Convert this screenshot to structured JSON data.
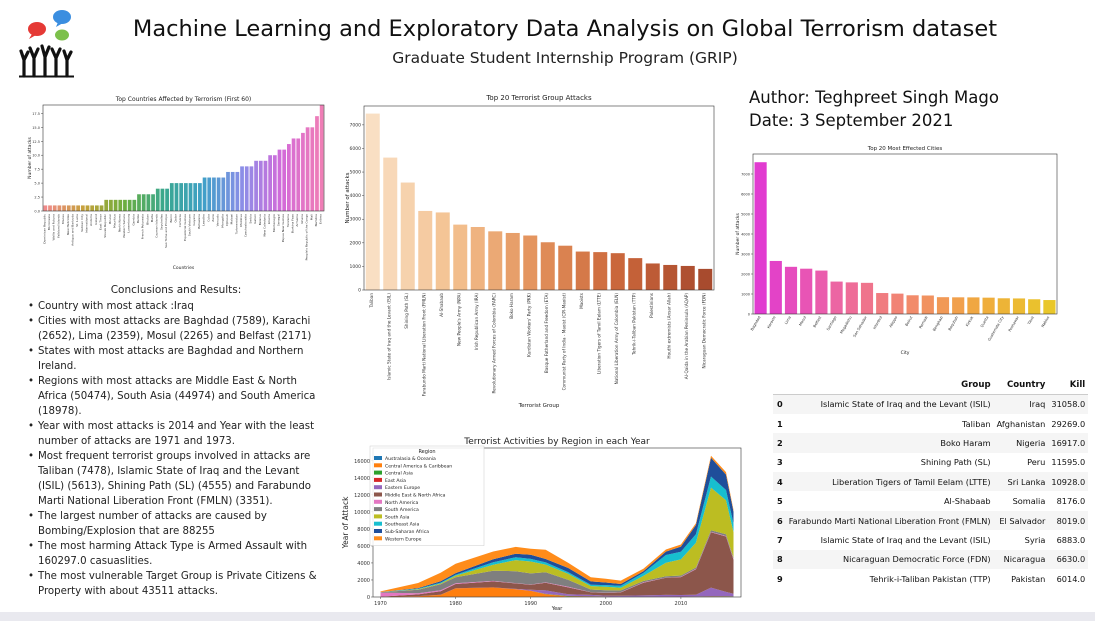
{
  "header": {
    "title": "Machine Learning and Exploratory Data Analysis on Global Terrorism dataset",
    "subtitle": "Graduate Student Internship Program (GRIP)",
    "author": "Author: Teghpreet Singh Mago",
    "date": "Date: 3 September 2021"
  },
  "conclusions": {
    "heading": "Conclusions and Results:",
    "items": [
      "Country with most attack :Iraq",
      "Cities with most attacks are Baghdad (7589), Karachi (2652), Lima (2359), Mosul (2265) and Belfast (2171)",
      "States with most attacks are Baghdad and Northern Ireland.",
      "Regions with most attacks are Middle East & North Africa (50474), South Asia (44974) and South America (18978).",
      "Year with most attacks is 2014 and Year with the least number of attacks are 1971 and 1973.",
      "Most frequent terrorist groups involved in attacks are Taliban (7478), Islamic State of Iraq and the Levant (ISIL) (5613), Shining Path (SL) (4555) and Farabundo Marti National Liberation Front (FMLN) (3351).",
      "The largest number of attacks are caused by Bombing/Explosion that are 88255",
      "The most harming Attack Type is Armed Assault with 160297.0 casuaslities.",
      "The most vulnerable Target Group is Private Citizens & Property with about 43511 attacks."
    ]
  },
  "table": {
    "columns": [
      "",
      "Group",
      "Country",
      "Kill"
    ],
    "rows": [
      [
        "0",
        "Islamic State of Iraq and the Levant (ISIL)",
        "Iraq",
        "31058.0"
      ],
      [
        "1",
        "Taliban",
        "Afghanistan",
        "29269.0"
      ],
      [
        "2",
        "Boko Haram",
        "Nigeria",
        "16917.0"
      ],
      [
        "3",
        "Shining Path (SL)",
        "Peru",
        "11595.0"
      ],
      [
        "4",
        "Liberation Tigers of Tamil Eelam (LTTE)",
        "Sri Lanka",
        "10928.0"
      ],
      [
        "5",
        "Al-Shabaab",
        "Somalia",
        "8176.0"
      ],
      [
        "6",
        "Farabundo Marti National Liberation Front (FMLN)",
        "El Salvador",
        "8019.0"
      ],
      [
        "7",
        "Islamic State of Iraq and the Levant (ISIL)",
        "Syria",
        "6883.0"
      ],
      [
        "8",
        "Nicaraguan Democratic Force (FDN)",
        "Nicaragua",
        "6630.0"
      ],
      [
        "9",
        "Tehrik-i-Taliban Pakistan (TTP)",
        "Pakistan",
        "6014.0"
      ]
    ]
  },
  "chart_data": [
    {
      "type": "bar",
      "title": "Top Countries Affected by Terrorism (First 60)",
      "xlabel": "Countries",
      "ylabel": "Number of attacks",
      "ylim": [
        0,
        19
      ],
      "yticks": [
        "0.0",
        "2.5",
        "5.0",
        "7.5",
        "10.0",
        "12.5",
        "15.0",
        "17.5"
      ],
      "categories": [
        "Dominican Republic",
        "Micronesia",
        "Wallis and Futuna",
        "Falkland Islands",
        "Macau",
        "New Hebrides",
        "Antigua and Barbuda",
        "St. Lucia",
        "Vatican City",
        "International",
        "Andorra",
        "Iceland",
        "East Timor",
        "Slovak Republic",
        "Brunei",
        "Mauritius",
        "North Korea",
        "Western Sahara",
        "Luxembourg",
        "Gambia",
        "Belize",
        "French Polynesia",
        "Bhutan",
        "Malta",
        "Cayman Islands",
        "Seychelles",
        "Sao Tome and Principe",
        "Benin",
        "Qatar",
        "Comoros",
        "Equatorial Guinea",
        "South Vietnam",
        "Guyana",
        "Botswana",
        "Lesotho",
        "Cuba",
        "Zaire",
        "Vanuatu",
        "Mongolia",
        "Djibouti",
        "Malawi",
        "Turkmenistan",
        "Moldova",
        "Czechoslovakia",
        "Serbia",
        "Gabon",
        "Belarus",
        "New Caledonia",
        "Liberia",
        "Montenegro",
        "Senegal",
        "Papua New Guinea",
        "Tanzania",
        "Burkina Faso",
        "Armenia",
        "Ghana",
        "People's Republic of the Congo",
        "Mali",
        "Namibia",
        "Eritrea"
      ],
      "values": [
        1,
        1,
        1,
        1,
        1,
        1,
        1,
        1,
        1,
        1,
        1,
        1,
        1,
        2,
        2,
        2,
        2,
        2,
        2,
        2,
        3,
        3,
        3,
        3,
        4,
        4,
        4,
        5,
        5,
        5,
        5,
        5,
        5,
        5,
        6,
        6,
        6,
        6,
        6,
        7,
        7,
        7,
        8,
        8,
        8,
        9,
        9,
        9,
        10,
        10,
        11,
        11,
        12,
        13,
        13,
        14,
        15,
        15,
        17,
        19
      ]
    },
    {
      "type": "bar",
      "title": "Top 20 Terrorist Group Attacks",
      "xlabel": "Terrorist Group",
      "ylabel": "Number of attacks",
      "ylim": [
        0,
        7800
      ],
      "yticks": [
        0,
        1000,
        2000,
        3000,
        4000,
        5000,
        6000,
        7000
      ],
      "categories": [
        "Taliban",
        "Islamic State of Iraq and the Levant (ISIL)",
        "Shining Path (SL)",
        "Farabundo Marti National Liberation Front (FMLN)",
        "Al-Shabaab",
        "New People's Army (NPA)",
        "Irish Republican Army (IRA)",
        "Revolutionary Armed Forces of Colombia (FARC)",
        "Boko Haram",
        "Kurdistan Workers' Party (PKK)",
        "Basque Fatherland and Freedom (ETA)",
        "Communist Party of India - Maoist (CPI-Maoist)",
        "Maoists",
        "Liberation Tigers of Tamil Eelam (LTTE)",
        "National Liberation Army of Colombia (ELN)",
        "Tehrik-i-Taliban Pakistan (TTP)",
        "Palestinians",
        "Houthi extremists (Ansar Allah)",
        "Al-Qaida in the Arabian Peninsula (AQAP)",
        "Nicaraguan Democratic Force (FDN)"
      ],
      "values": [
        7478,
        5613,
        4555,
        3351,
        3288,
        2772,
        2671,
        2487,
        2418,
        2310,
        2024,
        1878,
        1630,
        1606,
        1561,
        1351,
        1125,
        1062,
        1020,
        895
      ]
    },
    {
      "type": "bar",
      "title": "Top 20 Most Effected Cities",
      "xlabel": "City",
      "ylabel": "Number of attacks",
      "ylim": [
        0,
        8000
      ],
      "yticks": [
        0,
        1000,
        2000,
        3000,
        4000,
        5000,
        6000,
        7000
      ],
      "categories": [
        "Baghdad",
        "Karachi",
        "Lima",
        "Mosul",
        "Belfast",
        "Santiago",
        "Mogadishu",
        "San Salvador",
        "Istanbul",
        "Aleppo",
        "Beirut",
        "Ramadi",
        "Benghazi",
        "Baqubah",
        "Kirkuk",
        "Quetta",
        "Guatemala City",
        "Peshawar",
        "Tikrit",
        "Nablus"
      ],
      "values": [
        7589,
        2652,
        2359,
        2265,
        2171,
        1621,
        1581,
        1558,
        1048,
        1019,
        936,
        925,
        841,
        834,
        831,
        817,
        786,
        778,
        737,
        698
      ]
    },
    {
      "type": "area",
      "title": "Terrorist Activities by Region in each Year",
      "xlabel": "Year",
      "ylabel": "Year of Attack",
      "xlim": [
        1969,
        2018
      ],
      "ylim": [
        0,
        17500
      ],
      "xticks": [
        1970,
        1980,
        1990,
        2000,
        2010
      ],
      "yticks": [
        0,
        2000,
        4000,
        6000,
        8000,
        10000,
        12000,
        14000,
        16000
      ],
      "legend_title": "Region",
      "legend_position": "top-left",
      "x": [
        1970,
        1975,
        1978,
        1980,
        1985,
        1988,
        1990,
        1992,
        1995,
        1998,
        2000,
        2002,
        2005,
        2008,
        2010,
        2012,
        2014,
        2016,
        2017
      ],
      "series": [
        {
          "name": "Australasia & Oceania",
          "color": "#1f77b4",
          "values": [
            0,
            0,
            0,
            10,
            10,
            10,
            20,
            20,
            10,
            10,
            10,
            10,
            5,
            10,
            20,
            20,
            30,
            40,
            30
          ]
        },
        {
          "name": "Central America & Caribbean",
          "color": "#ff7f0e",
          "values": [
            7,
            80,
            250,
            1000,
            1100,
            900,
            700,
            300,
            50,
            30,
            20,
            10,
            10,
            10,
            10,
            10,
            20,
            20,
            20
          ]
        },
        {
          "name": "Central Asia",
          "color": "#2ca02c",
          "values": [
            0,
            0,
            0,
            0,
            0,
            0,
            0,
            30,
            40,
            30,
            20,
            10,
            10,
            10,
            10,
            20,
            20,
            20,
            20
          ]
        },
        {
          "name": "East Asia",
          "color": "#d62728",
          "values": [
            5,
            20,
            20,
            20,
            20,
            20,
            20,
            20,
            30,
            30,
            20,
            10,
            10,
            20,
            20,
            20,
            30,
            20,
            20
          ]
        },
        {
          "name": "Eastern Europe",
          "color": "#9467bd",
          "values": [
            0,
            0,
            0,
            0,
            0,
            20,
            100,
            400,
            200,
            150,
            100,
            100,
            150,
            200,
            180,
            200,
            1000,
            500,
            300
          ]
        },
        {
          "name": "Middle East & North Africa",
          "color": "#8c564b",
          "values": [
            30,
            200,
            400,
            500,
            700,
            650,
            600,
            900,
            800,
            300,
            300,
            400,
            1500,
            2000,
            2100,
            3000,
            6500,
            6500,
            4000
          ]
        },
        {
          "name": "North America",
          "color": "#e377c2",
          "values": [
            470,
            150,
            120,
            80,
            60,
            30,
            30,
            40,
            80,
            30,
            30,
            40,
            40,
            30,
            30,
            40,
            50,
            70,
            90
          ]
        },
        {
          "name": "South America",
          "color": "#7f7f7f",
          "values": [
            50,
            400,
            700,
            700,
            1200,
            1400,
            1300,
            1200,
            800,
            300,
            300,
            200,
            150,
            150,
            150,
            150,
            200,
            200,
            150
          ]
        },
        {
          "name": "South Asia",
          "color": "#bcbd22",
          "values": [
            10,
            50,
            100,
            200,
            700,
            1300,
            1400,
            900,
            700,
            400,
            400,
            300,
            600,
            1600,
            1900,
            2900,
            5000,
            4000,
            3000
          ]
        },
        {
          "name": "Southeast Asia",
          "color": "#17becf",
          "values": [
            10,
            80,
            100,
            100,
            300,
            350,
            300,
            250,
            200,
            150,
            200,
            250,
            350,
            900,
            900,
            1000,
            1300,
            1200,
            1000
          ]
        },
        {
          "name": "Sub-Saharan Africa",
          "color": "#1f4e9a",
          "values": [
            10,
            60,
            150,
            200,
            350,
            400,
            500,
            400,
            500,
            400,
            300,
            200,
            200,
            400,
            600,
            1100,
            2200,
            1800,
            1400
          ]
        },
        {
          "name": "Western Europe",
          "color": "#ff8c1a",
          "values": [
            60,
            600,
            1000,
            1100,
            900,
            800,
            700,
            1100,
            600,
            500,
            450,
            400,
            300,
            250,
            250,
            200,
            250,
            300,
            200
          ]
        }
      ]
    }
  ]
}
